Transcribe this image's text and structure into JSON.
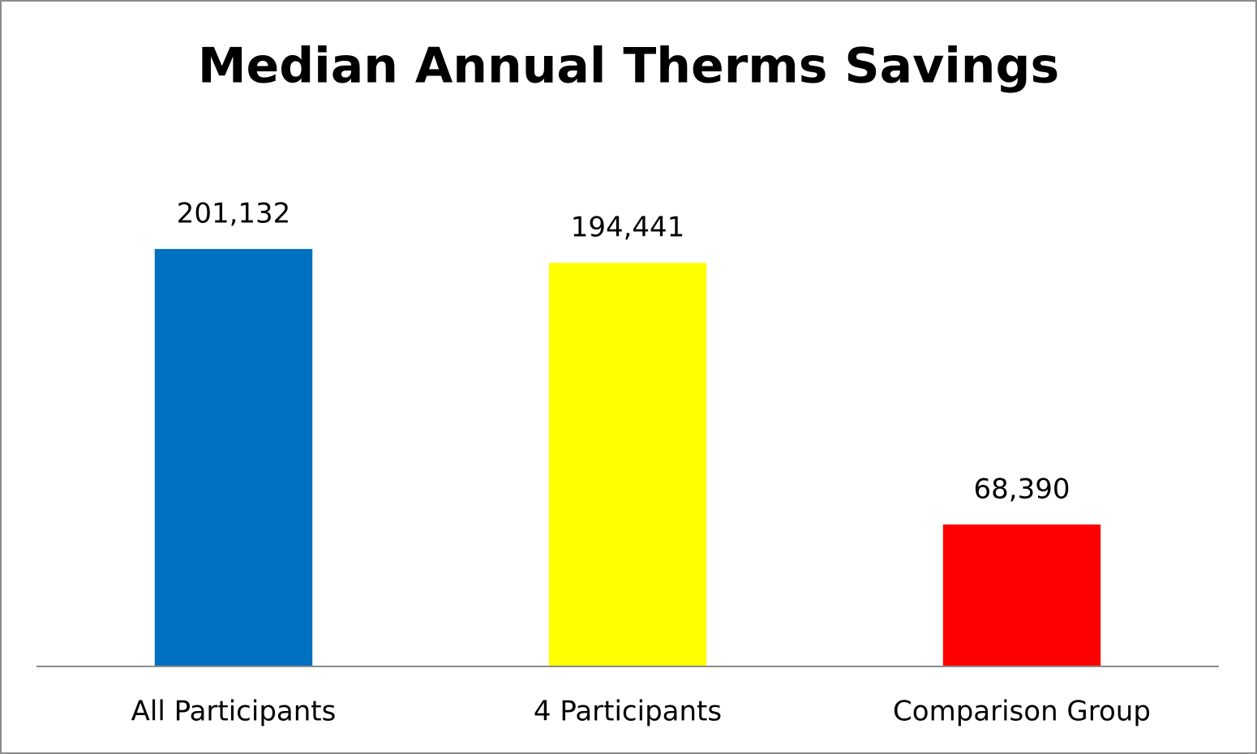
{
  "chart_data": {
    "type": "bar",
    "title": "Median Annual Therms Savings",
    "categories": [
      "All Participants",
      "4 Participants",
      "Comparison Group"
    ],
    "values": [
      201132,
      194441,
      68390
    ],
    "value_labels": [
      "201,132",
      "194,441",
      "68,390"
    ],
    "colors": [
      "#0070c0",
      "#ffff00",
      "#ff0000"
    ],
    "ylim": [
      0,
      250000
    ]
  }
}
